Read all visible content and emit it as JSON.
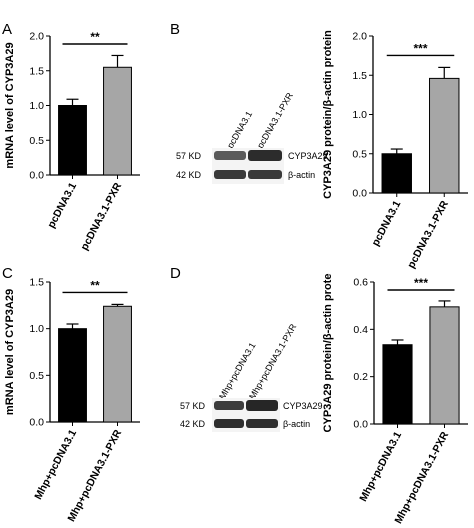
{
  "panel_labels": [
    "A",
    "B",
    "C",
    "D"
  ],
  "blots": [
    {
      "lanes": [
        "pcDNA3.1",
        "pcDNA3.1-PXR"
      ],
      "rows": [
        {
          "weight": "57 KD",
          "protein": "CYP3A29"
        },
        {
          "weight": "42 KD",
          "protein": "β-actin"
        }
      ]
    },
    {
      "lanes": [
        "Mhp+pcDNA3.1",
        "Mhp+pcDNA3.1-PXR"
      ],
      "rows": [
        {
          "weight": "57 KD",
          "protein": "CYP3A29"
        },
        {
          "weight": "42 KD",
          "protein": "β-actin"
        }
      ]
    }
  ],
  "chart_data": [
    {
      "type": "bar",
      "panel": "A",
      "categories": [
        "pcDNA3.1",
        "pcDNA3.1-PXR"
      ],
      "values": [
        1.0,
        1.55
      ],
      "errors": [
        0.09,
        0.17
      ],
      "colors": [
        "#000000",
        "#a6a6a6"
      ],
      "ylabel": "mRNA level of CYP3A29",
      "ylim": [
        0,
        2.0
      ],
      "yticks": [
        "0.0",
        "0.5",
        "1.0",
        "1.5",
        "2.0"
      ],
      "significance": "**"
    },
    {
      "type": "bar",
      "panel": "B",
      "categories": [
        "pcDNA3.1",
        "pcDNA3.1-PXR"
      ],
      "values": [
        0.5,
        1.46
      ],
      "errors": [
        0.06,
        0.14
      ],
      "colors": [
        "#000000",
        "#a6a6a6"
      ],
      "ylabel": "CYP3A29 protein/β-actin protein",
      "ylim": [
        0,
        2.0
      ],
      "yticks": [
        "0.0",
        "0.5",
        "1.0",
        "1.5",
        "2.0"
      ],
      "significance": "***"
    },
    {
      "type": "bar",
      "panel": "C",
      "categories": [
        "Mhp+pcDNA3.1",
        "Mhp+pcDNA3.1-PXR"
      ],
      "values": [
        1.0,
        1.24
      ],
      "errors": [
        0.05,
        0.02
      ],
      "colors": [
        "#000000",
        "#a6a6a6"
      ],
      "ylabel": "mRNA level of CYP3A29",
      "ylim": [
        0,
        1.5
      ],
      "yticks": [
        "0.0",
        "0.5",
        "1.0",
        "1.5"
      ],
      "significance": "**"
    },
    {
      "type": "bar",
      "panel": "D",
      "categories": [
        "Mhp+pcDNA3.1",
        "Mhp+pcDNA3.1-PXR"
      ],
      "values": [
        0.335,
        0.495
      ],
      "errors": [
        0.02,
        0.025
      ],
      "colors": [
        "#000000",
        "#a6a6a6"
      ],
      "ylabel": "CYP3A29 protein/β-actin prote",
      "ylim": [
        0,
        0.6
      ],
      "yticks": [
        "0.0",
        "0.2",
        "0.4",
        "0.6"
      ],
      "significance": "***"
    }
  ]
}
